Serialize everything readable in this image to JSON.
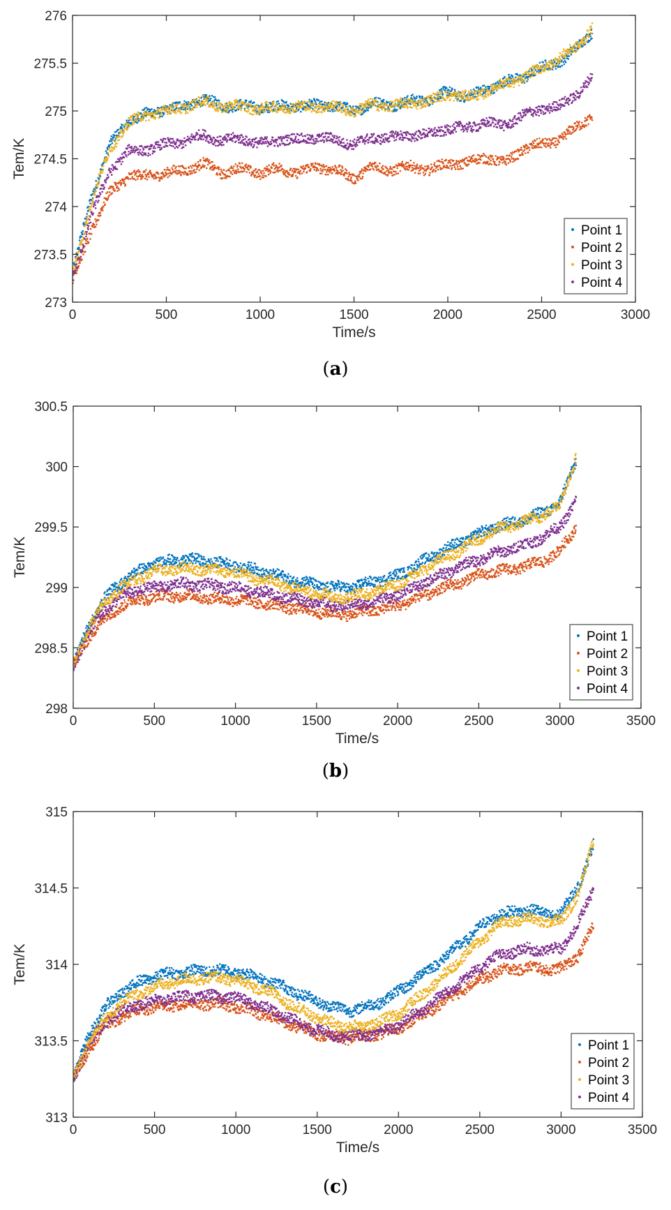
{
  "chart_data": [
    {
      "type": "scatter",
      "panel_label": "a",
      "xlabel": "Time/s",
      "ylabel": "Tem/K",
      "xlim": [
        0,
        3000
      ],
      "ylim": [
        273,
        276
      ],
      "xticks": [
        0,
        500,
        1000,
        1500,
        2000,
        2500,
        3000
      ],
      "yticks": [
        273,
        273.5,
        274,
        274.5,
        275,
        275.5,
        276
      ],
      "legend_position": "bottom-right",
      "series": [
        {
          "name": "Point 1",
          "color": "#0072BD",
          "x": [
            0,
            100,
            200,
            300,
            400,
            500,
            600,
            700,
            800,
            900,
            1000,
            1100,
            1200,
            1300,
            1400,
            1500,
            1600,
            1700,
            1800,
            1900,
            2000,
            2100,
            2200,
            2300,
            2400,
            2500,
            2600,
            2700,
            2770
          ],
          "y": [
            273.3,
            274.1,
            274.65,
            274.9,
            274.97,
            275.02,
            275.05,
            275.12,
            275.05,
            275.06,
            275.03,
            275.05,
            275.05,
            275.06,
            275.05,
            275.0,
            275.08,
            275.06,
            275.1,
            275.12,
            275.2,
            275.15,
            275.22,
            275.3,
            275.35,
            275.45,
            275.52,
            275.68,
            275.83
          ]
        },
        {
          "name": "Point 2",
          "color": "#D95319",
          "x": [
            0,
            100,
            200,
            300,
            400,
            500,
            600,
            700,
            800,
            900,
            1000,
            1100,
            1200,
            1300,
            1400,
            1500,
            1600,
            1700,
            1800,
            1900,
            2000,
            2100,
            2200,
            2300,
            2400,
            2500,
            2600,
            2700,
            2770
          ],
          "y": [
            273.22,
            273.75,
            274.15,
            274.32,
            274.32,
            274.35,
            274.38,
            274.45,
            274.35,
            274.4,
            274.35,
            274.4,
            274.35,
            274.42,
            274.38,
            274.3,
            274.42,
            274.38,
            274.42,
            274.38,
            274.45,
            274.45,
            274.52,
            274.45,
            274.6,
            274.65,
            274.7,
            274.85,
            274.95
          ]
        },
        {
          "name": "Point 3",
          "color": "#EDB120",
          "x": [
            0,
            100,
            200,
            300,
            400,
            500,
            600,
            700,
            800,
            900,
            1000,
            1100,
            1200,
            1300,
            1400,
            1500,
            1600,
            1700,
            1800,
            1900,
            2000,
            2100,
            2200,
            2300,
            2400,
            2500,
            2600,
            2700,
            2770
          ],
          "y": [
            273.28,
            274.05,
            274.6,
            274.88,
            274.96,
            275.0,
            275.04,
            275.1,
            275.04,
            275.05,
            275.02,
            275.04,
            275.04,
            275.05,
            275.04,
            275.0,
            275.07,
            275.05,
            275.08,
            275.1,
            275.18,
            275.14,
            275.2,
            275.28,
            275.34,
            275.45,
            275.55,
            275.7,
            275.86
          ]
        },
        {
          "name": "Point 4",
          "color": "#7E2F8E",
          "x": [
            0,
            100,
            200,
            300,
            400,
            500,
            600,
            700,
            800,
            900,
            1000,
            1100,
            1200,
            1300,
            1400,
            1500,
            1600,
            1700,
            1800,
            1900,
            2000,
            2100,
            2200,
            2300,
            2400,
            2500,
            2600,
            2700,
            2770
          ],
          "y": [
            273.25,
            273.9,
            274.38,
            274.58,
            274.6,
            274.65,
            274.68,
            274.75,
            274.68,
            274.72,
            274.65,
            274.7,
            274.7,
            274.72,
            274.7,
            274.65,
            274.72,
            274.72,
            274.75,
            274.75,
            274.82,
            274.82,
            274.88,
            274.85,
            274.95,
            275.02,
            275.05,
            275.2,
            275.35
          ]
        }
      ]
    },
    {
      "type": "scatter",
      "panel_label": "b",
      "xlabel": "Time/s",
      "ylabel": "Tem/K",
      "xlim": [
        0,
        3500
      ],
      "ylim": [
        298,
        300.5
      ],
      "xticks": [
        0,
        500,
        1000,
        1500,
        2000,
        2500,
        3000,
        3500
      ],
      "yticks": [
        298,
        298.5,
        299,
        299.5,
        300,
        300.5
      ],
      "legend_position": "bottom-right",
      "series": [
        {
          "name": "Point 1",
          "color": "#0072BD",
          "x": [
            0,
            100,
            200,
            300,
            400,
            500,
            600,
            700,
            800,
            900,
            1000,
            1100,
            1200,
            1300,
            1400,
            1500,
            1600,
            1700,
            1800,
            1900,
            2000,
            2100,
            2200,
            2300,
            2400,
            2500,
            2600,
            2700,
            2800,
            2900,
            3000,
            3100
          ],
          "y": [
            298.35,
            298.7,
            298.92,
            299.05,
            299.13,
            299.2,
            299.22,
            299.23,
            299.22,
            299.2,
            299.18,
            299.15,
            299.12,
            299.08,
            299.05,
            299.02,
            299.0,
            299.0,
            299.03,
            299.06,
            299.1,
            299.17,
            299.25,
            299.32,
            299.38,
            299.44,
            299.5,
            299.53,
            299.57,
            299.62,
            299.7,
            300.05
          ]
        },
        {
          "name": "Point 2",
          "color": "#D95319",
          "x": [
            0,
            100,
            200,
            300,
            400,
            500,
            600,
            700,
            800,
            900,
            1000,
            1100,
            1200,
            1300,
            1400,
            1500,
            1600,
            1700,
            1800,
            1900,
            2000,
            2100,
            2200,
            2300,
            2400,
            2500,
            2600,
            2700,
            2800,
            2900,
            3000,
            3100
          ],
          "y": [
            298.35,
            298.6,
            298.75,
            298.85,
            298.9,
            298.92,
            298.93,
            298.93,
            298.92,
            298.9,
            298.9,
            298.88,
            298.86,
            298.84,
            298.82,
            298.8,
            298.78,
            298.78,
            298.8,
            298.82,
            298.85,
            298.9,
            298.95,
            299.0,
            299.05,
            299.1,
            299.13,
            299.15,
            299.18,
            299.22,
            299.3,
            299.5
          ]
        },
        {
          "name": "Point 3",
          "color": "#EDB120",
          "x": [
            0,
            100,
            200,
            300,
            400,
            500,
            600,
            700,
            800,
            900,
            1000,
            1100,
            1200,
            1300,
            1400,
            1500,
            1600,
            1700,
            1800,
            1900,
            2000,
            2100,
            2200,
            2300,
            2400,
            2500,
            2600,
            2700,
            2800,
            2900,
            3000,
            3100
          ],
          "y": [
            298.35,
            298.68,
            298.88,
            299.0,
            299.08,
            299.13,
            299.15,
            299.16,
            299.15,
            299.14,
            299.12,
            299.08,
            299.05,
            299.02,
            298.98,
            298.95,
            298.92,
            298.92,
            298.95,
            298.98,
            299.03,
            299.1,
            299.18,
            299.25,
            299.32,
            299.4,
            299.47,
            299.51,
            299.55,
            299.6,
            299.68,
            300.08
          ]
        },
        {
          "name": "Point 4",
          "color": "#7E2F8E",
          "x": [
            0,
            100,
            200,
            300,
            400,
            500,
            600,
            700,
            800,
            900,
            1000,
            1100,
            1200,
            1300,
            1400,
            1500,
            1600,
            1700,
            1800,
            1900,
            2000,
            2100,
            2200,
            2300,
            2400,
            2500,
            2600,
            2700,
            2800,
            2900,
            3000,
            3100
          ],
          "y": [
            298.35,
            298.64,
            298.82,
            298.93,
            298.98,
            299.0,
            299.02,
            299.03,
            299.02,
            299.01,
            299.0,
            298.97,
            298.95,
            298.92,
            298.9,
            298.88,
            298.85,
            298.85,
            298.87,
            298.9,
            298.94,
            299.0,
            299.06,
            299.12,
            299.18,
            299.23,
            299.28,
            299.32,
            299.36,
            299.42,
            299.5,
            299.72
          ]
        }
      ]
    },
    {
      "type": "scatter",
      "panel_label": "c",
      "xlabel": "Time/s",
      "ylabel": "Tem/K",
      "xlim": [
        0,
        3500
      ],
      "ylim": [
        313,
        315
      ],
      "xticks": [
        0,
        500,
        1000,
        1500,
        2000,
        2500,
        3000,
        3500
      ],
      "yticks": [
        313,
        313.5,
        314,
        314.5,
        315
      ],
      "legend_position": "bottom-right",
      "series": [
        {
          "name": "Point 1",
          "color": "#0072BD",
          "x": [
            0,
            100,
            200,
            300,
            400,
            500,
            600,
            700,
            800,
            900,
            1000,
            1100,
            1200,
            1300,
            1400,
            1500,
            1600,
            1700,
            1800,
            1900,
            2000,
            2100,
            2200,
            2300,
            2400,
            2500,
            2600,
            2700,
            2800,
            2900,
            3000,
            3100,
            3200
          ],
          "y": [
            313.25,
            313.55,
            313.72,
            313.82,
            313.88,
            313.92,
            313.94,
            313.95,
            313.96,
            313.96,
            313.95,
            313.93,
            313.89,
            313.85,
            313.8,
            313.76,
            313.72,
            313.7,
            313.72,
            313.76,
            313.82,
            313.9,
            313.98,
            314.06,
            314.15,
            314.24,
            314.32,
            314.34,
            314.36,
            314.33,
            314.33,
            314.5,
            314.78
          ]
        },
        {
          "name": "Point 2",
          "color": "#D95319",
          "x": [
            0,
            100,
            200,
            300,
            400,
            500,
            600,
            700,
            800,
            900,
            1000,
            1100,
            1200,
            1300,
            1400,
            1500,
            1600,
            1700,
            1800,
            1900,
            2000,
            2100,
            2200,
            2300,
            2400,
            2500,
            2600,
            2700,
            2800,
            2900,
            3000,
            3100,
            3200
          ],
          "y": [
            313.25,
            313.45,
            313.6,
            313.66,
            313.7,
            313.72,
            313.73,
            313.74,
            313.74,
            313.74,
            313.72,
            313.7,
            313.66,
            313.62,
            313.58,
            313.55,
            313.52,
            313.52,
            313.53,
            313.55,
            313.58,
            313.64,
            313.7,
            313.77,
            313.84,
            313.9,
            313.95,
            313.97,
            313.98,
            313.97,
            313.97,
            314.05,
            314.25
          ]
        },
        {
          "name": "Point 3",
          "color": "#EDB120",
          "x": [
            0,
            100,
            200,
            300,
            400,
            500,
            600,
            700,
            800,
            900,
            1000,
            1100,
            1200,
            1300,
            1400,
            1500,
            1600,
            1700,
            1800,
            1900,
            2000,
            2100,
            2200,
            2300,
            2400,
            2500,
            2600,
            2700,
            2800,
            2900,
            3000,
            3100,
            3200
          ],
          "y": [
            313.25,
            313.5,
            313.65,
            313.75,
            313.81,
            313.85,
            313.88,
            313.9,
            313.91,
            313.91,
            313.9,
            313.86,
            313.82,
            313.76,
            313.7,
            313.65,
            313.61,
            313.59,
            313.6,
            313.63,
            313.68,
            313.76,
            313.85,
            313.95,
            314.05,
            314.15,
            314.25,
            314.29,
            314.3,
            314.28,
            314.28,
            314.45,
            314.8
          ]
        },
        {
          "name": "Point 4",
          "color": "#7E2F8E",
          "x": [
            0,
            100,
            200,
            300,
            400,
            500,
            600,
            700,
            800,
            900,
            1000,
            1100,
            1200,
            1300,
            1400,
            1500,
            1600,
            1700,
            1800,
            1900,
            2000,
            2100,
            2200,
            2300,
            2400,
            2500,
            2600,
            2700,
            2800,
            2900,
            3000,
            3100,
            3200
          ],
          "y": [
            313.25,
            313.48,
            313.63,
            313.7,
            313.74,
            313.76,
            313.78,
            313.79,
            313.79,
            313.79,
            313.78,
            313.75,
            313.71,
            313.66,
            313.61,
            313.57,
            313.54,
            313.53,
            313.54,
            313.56,
            313.6,
            313.67,
            313.74,
            313.82,
            313.9,
            313.98,
            314.05,
            314.08,
            314.1,
            314.09,
            314.1,
            314.25,
            314.5
          ]
        }
      ]
    }
  ]
}
